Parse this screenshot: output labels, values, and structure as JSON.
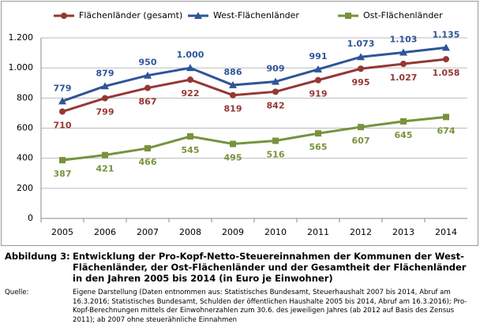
{
  "chart_data": {
    "type": "line",
    "categories": [
      "2005",
      "2006",
      "2007",
      "2008",
      "2009",
      "2010",
      "2011",
      "2012",
      "2013",
      "2014"
    ],
    "series": [
      {
        "name": "Flächenländer (gesamt)",
        "color": "#953735",
        "marker": "circle",
        "label_side": "below",
        "values": [
          710,
          799,
          867,
          922,
          819,
          842,
          919,
          995,
          1027,
          1058
        ],
        "value_labels": [
          "710",
          "799",
          "867",
          "922",
          "819",
          "842",
          "919",
          "995",
          "1.027",
          "1.058"
        ]
      },
      {
        "name": "West-Flächenländer",
        "color": "#2e5597",
        "marker": "triangle",
        "label_side": "above",
        "values": [
          779,
          879,
          950,
          1000,
          886,
          909,
          991,
          1073,
          1103,
          1135
        ],
        "value_labels": [
          "779",
          "879",
          "950",
          "1.000",
          "886",
          "909",
          "991",
          "1.073",
          "1.103",
          "1.135"
        ]
      },
      {
        "name": "Ost-Flächenländer",
        "color": "#77933c",
        "marker": "square",
        "label_side": "below",
        "values": [
          387,
          421,
          466,
          545,
          495,
          516,
          565,
          607,
          645,
          674
        ],
        "value_labels": [
          "387",
          "421",
          "466",
          "545",
          "495",
          "516",
          "565",
          "607",
          "645",
          "674"
        ]
      }
    ],
    "ylim": [
      0,
      1200
    ],
    "yticks": [
      0,
      200,
      400,
      600,
      800,
      {
        "value": 1000,
        "label": "1.000"
      },
      {
        "value": 1200,
        "label": "1.200"
      }
    ],
    "grid": true,
    "legend": "top"
  },
  "caption": {
    "label": "Abbildung 3:",
    "text": "Entwicklung der Pro-Kopf-Netto-Steuereinnahmen der Kommunen der West-Flächenländer, der Ost-Flächenländer und der Gesamtheit der Flächenländer in den Jahren 2005 bis 2014  (in Euro je Einwohner)"
  },
  "source": {
    "label": "Quelle:",
    "text": "Eigene Darstellung (Daten entnommen aus: Statistisches Bundesamt, Steuerhaushalt 2007 bis 2014, Abruf am 16.3.2016;  Statistisches Bundesamt, Schulden der öffentlichen Haushalte 2005 bis 2014, Abruf am 16.3.2016); Pro-Kopf-Berechnungen mittels der Einwohnerzahlen zum 30.6. des jeweiligen Jahres (ab 2012 auf Basis des Zensus 2011); ab 2007 ohne steuerähnliche Einnahmen"
  }
}
